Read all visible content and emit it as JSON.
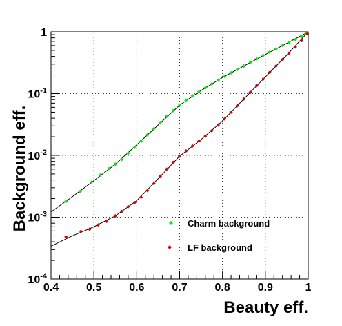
{
  "chart_data": {
    "type": "scatter",
    "xlabel": "Beauty eff.",
    "ylabel": "Background eff.",
    "xlim": [
      0.4,
      1.0
    ],
    "ylim": [
      0.0001,
      1
    ],
    "yscale": "log",
    "grid": true,
    "legend_position": "bottom-right",
    "x_ticks": [
      "0.4",
      "0.5",
      "0.6",
      "0.7",
      "0.8",
      "0.9",
      "1"
    ],
    "y_ticks": [
      {
        "value": 0.0001,
        "base": "10",
        "exp": "-4"
      },
      {
        "value": 0.001,
        "base": "10",
        "exp": "-3"
      },
      {
        "value": 0.01,
        "base": "10",
        "exp": "-2"
      },
      {
        "value": 0.1,
        "base": "10",
        "exp": "-1"
      },
      {
        "value": 1,
        "base": "1",
        "exp": ""
      }
    ],
    "series": [
      {
        "name": "Charm background",
        "color": "#00ee00",
        "marker": "diamond",
        "points": [
          [
            0.435,
            0.0018
          ],
          [
            0.468,
            0.0026
          ],
          [
            0.495,
            0.0037
          ],
          [
            0.515,
            0.0048
          ],
          [
            0.535,
            0.0061
          ],
          [
            0.55,
            0.0072
          ],
          [
            0.565,
            0.0086
          ],
          [
            0.58,
            0.0108
          ],
          [
            0.595,
            0.0135
          ],
          [
            0.61,
            0.017
          ],
          [
            0.625,
            0.0215
          ],
          [
            0.64,
            0.027
          ],
          [
            0.655,
            0.034
          ],
          [
            0.67,
            0.043
          ],
          [
            0.685,
            0.053
          ],
          [
            0.7,
            0.065
          ],
          [
            0.715,
            0.078
          ],
          [
            0.73,
            0.092
          ],
          [
            0.745,
            0.107
          ],
          [
            0.76,
            0.124
          ],
          [
            0.775,
            0.143
          ],
          [
            0.79,
            0.165
          ],
          [
            0.805,
            0.19
          ],
          [
            0.82,
            0.217
          ],
          [
            0.835,
            0.247
          ],
          [
            0.85,
            0.28
          ],
          [
            0.865,
            0.32
          ],
          [
            0.88,
            0.365
          ],
          [
            0.895,
            0.415
          ],
          [
            0.91,
            0.47
          ],
          [
            0.925,
            0.53
          ],
          [
            0.94,
            0.6
          ],
          [
            0.955,
            0.67
          ],
          [
            0.97,
            0.75
          ],
          [
            0.985,
            0.84
          ],
          [
            0.995,
            0.93
          ]
        ],
        "fit": [
          [
            0.4,
            0.00122
          ],
          [
            0.45,
            0.00215
          ],
          [
            0.5,
            0.0039
          ],
          [
            0.55,
            0.0072
          ],
          [
            0.6,
            0.0148
          ],
          [
            0.65,
            0.031
          ],
          [
            0.7,
            0.065
          ],
          [
            0.75,
            0.112
          ],
          [
            0.8,
            0.182
          ],
          [
            0.85,
            0.28
          ],
          [
            0.9,
            0.43
          ],
          [
            0.95,
            0.65
          ],
          [
            1.0,
            1.0
          ]
        ]
      },
      {
        "name": "LF background",
        "color": "#dd0000",
        "marker": "diamond",
        "points": [
          [
            0.435,
            0.00048
          ],
          [
            0.47,
            0.00059
          ],
          [
            0.49,
            0.00064
          ],
          [
            0.51,
            0.00075
          ],
          [
            0.53,
            0.00086
          ],
          [
            0.55,
            0.00105
          ],
          [
            0.565,
            0.00124
          ],
          [
            0.58,
            0.00148
          ],
          [
            0.595,
            0.00172
          ],
          [
            0.61,
            0.0021
          ],
          [
            0.625,
            0.0027
          ],
          [
            0.64,
            0.0035
          ],
          [
            0.655,
            0.0046
          ],
          [
            0.67,
            0.006
          ],
          [
            0.685,
            0.0077
          ],
          [
            0.7,
            0.0097
          ],
          [
            0.715,
            0.0118
          ],
          [
            0.73,
            0.0142
          ],
          [
            0.745,
            0.017
          ],
          [
            0.76,
            0.0205
          ],
          [
            0.775,
            0.025
          ],
          [
            0.79,
            0.031
          ],
          [
            0.805,
            0.039
          ],
          [
            0.82,
            0.05
          ],
          [
            0.835,
            0.064
          ],
          [
            0.85,
            0.082
          ],
          [
            0.865,
            0.105
          ],
          [
            0.88,
            0.135
          ],
          [
            0.895,
            0.172
          ],
          [
            0.91,
            0.22
          ],
          [
            0.925,
            0.28
          ],
          [
            0.94,
            0.355
          ],
          [
            0.955,
            0.45
          ],
          [
            0.97,
            0.57
          ],
          [
            0.985,
            0.72
          ],
          [
            0.998,
            0.93
          ]
        ],
        "fit": [
          [
            0.4,
            0.00034
          ],
          [
            0.45,
            0.0005
          ],
          [
            0.5,
            0.0007
          ],
          [
            0.55,
            0.00105
          ],
          [
            0.6,
            0.00185
          ],
          [
            0.65,
            0.0042
          ],
          [
            0.7,
            0.0097
          ],
          [
            0.75,
            0.018
          ],
          [
            0.8,
            0.036
          ],
          [
            0.85,
            0.082
          ],
          [
            0.9,
            0.186
          ],
          [
            0.95,
            0.42
          ],
          [
            1.0,
            1.0
          ]
        ]
      }
    ]
  }
}
